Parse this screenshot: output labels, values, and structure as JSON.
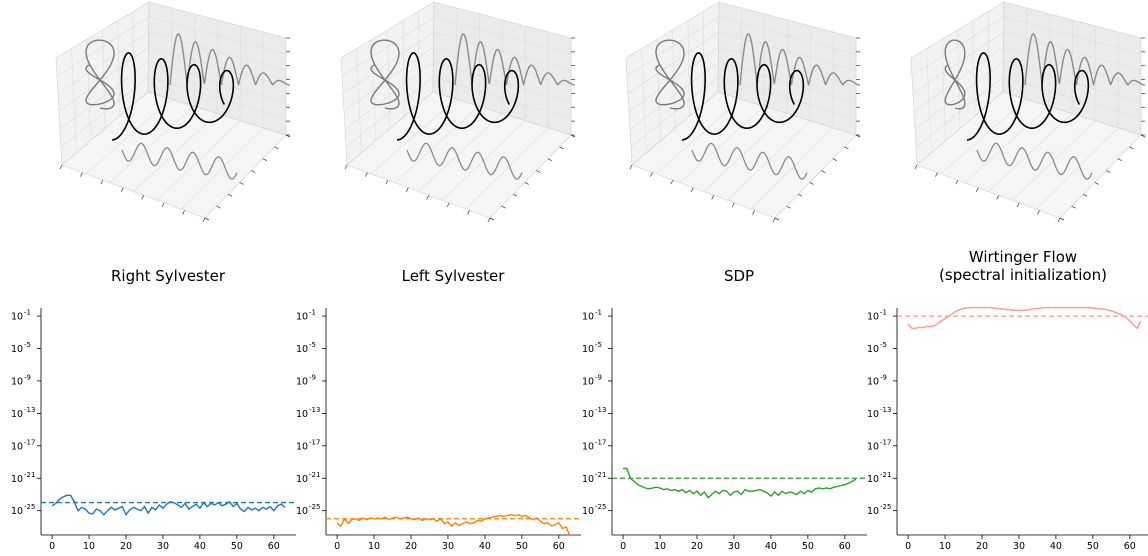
{
  "chart_data": [
    {
      "type": "line",
      "title": "Right Sylvester",
      "yscale": "log",
      "ylim": [
        1e-28,
        1.0
      ],
      "xlim": [
        -3,
        66
      ],
      "xticks": [
        0,
        10,
        20,
        30,
        40,
        50,
        60
      ],
      "ytick_labels": [
        "10",
        "10",
        "10",
        "10",
        "10",
        "10",
        "10"
      ],
      "ytick_exponents": [
        "-25",
        "-21",
        "-17",
        "-13",
        "-9",
        "-5",
        "-1"
      ],
      "ytick_values": [
        -25,
        -21,
        -17,
        -13,
        -9,
        -5,
        -1
      ],
      "color": "#1f77b4",
      "reference_line": 1e-24,
      "x": [
        0,
        1,
        2,
        3,
        4,
        5,
        6,
        7,
        8,
        9,
        10,
        11,
        12,
        13,
        14,
        15,
        16,
        17,
        18,
        19,
        20,
        21,
        22,
        23,
        24,
        25,
        26,
        27,
        28,
        29,
        30,
        31,
        32,
        33,
        34,
        35,
        36,
        37,
        38,
        39,
        40,
        41,
        42,
        43,
        44,
        45,
        46,
        47,
        48,
        49,
        50,
        51,
        52,
        53,
        54,
        55,
        56,
        57,
        58,
        59,
        60,
        61,
        62,
        63
      ],
      "log10_y": [
        -24.4,
        -24.1,
        -23.6,
        -23.3,
        -23.1,
        -23.1,
        -23.9,
        -25.0,
        -24.6,
        -24.8,
        -25.3,
        -25.4,
        -24.8,
        -25.0,
        -25.5,
        -25.0,
        -24.6,
        -24.9,
        -24.7,
        -24.5,
        -25.5,
        -24.9,
        -24.6,
        -24.8,
        -25.0,
        -24.5,
        -25.3,
        -24.6,
        -24.9,
        -24.3,
        -24.7,
        -24.2,
        -23.9,
        -24.0,
        -24.3,
        -24.6,
        -24.1,
        -24.8,
        -24.5,
        -24.2,
        -24.7,
        -24.0,
        -24.5,
        -24.1,
        -24.3,
        -24.0,
        -24.4,
        -24.2,
        -23.9,
        -24.5,
        -24.1,
        -24.8,
        -25.1,
        -24.6,
        -24.9,
        -24.7,
        -25.0,
        -24.6,
        -24.8,
        -24.5,
        -25.0,
        -24.4,
        -24.2,
        -24.6
      ]
    },
    {
      "type": "line",
      "title": "Left Sylvester",
      "yscale": "log",
      "ylim": [
        1e-28,
        1.0
      ],
      "xlim": [
        -3,
        66
      ],
      "xticks": [
        0,
        10,
        20,
        30,
        40,
        50,
        60
      ],
      "ytick_labels": [
        "10",
        "10",
        "10",
        "10",
        "10",
        "10",
        "10"
      ],
      "ytick_exponents": [
        "-25",
        "-21",
        "-17",
        "-13",
        "-9",
        "-5",
        "-1"
      ],
      "ytick_values": [
        -25,
        -21,
        -17,
        -13,
        -9,
        -5,
        -1
      ],
      "color": "#ff7f0e",
      "reference_line": 1e-26,
      "x": [
        0,
        1,
        2,
        3,
        4,
        5,
        6,
        7,
        8,
        9,
        10,
        11,
        12,
        13,
        14,
        15,
        16,
        17,
        18,
        19,
        20,
        21,
        22,
        23,
        24,
        25,
        26,
        27,
        28,
        29,
        30,
        31,
        32,
        33,
        34,
        35,
        36,
        37,
        38,
        39,
        40,
        41,
        42,
        43,
        44,
        45,
        46,
        47,
        48,
        49,
        50,
        51,
        52,
        53,
        54,
        55,
        56,
        57,
        58,
        59,
        60,
        61,
        62,
        63
      ],
      "log10_y": [
        -26.5,
        -26.9,
        -26.0,
        -26.6,
        -26.1,
        -26.0,
        -26.2,
        -25.9,
        -26.1,
        -25.9,
        -26.0,
        -25.9,
        -26.0,
        -25.8,
        -26.1,
        -25.9,
        -25.8,
        -26.0,
        -25.9,
        -25.8,
        -26.0,
        -26.1,
        -25.9,
        -26.2,
        -26.0,
        -26.1,
        -26.0,
        -26.3,
        -26.0,
        -26.6,
        -26.4,
        -26.9,
        -26.5,
        -26.8,
        -26.6,
        -26.4,
        -26.6,
        -26.5,
        -26.2,
        -26.3,
        -26.0,
        -25.9,
        -25.8,
        -25.7,
        -25.6,
        -25.7,
        -25.6,
        -25.5,
        -25.6,
        -25.5,
        -25.7,
        -25.6,
        -25.9,
        -26.1,
        -25.9,
        -26.3,
        -26.6,
        -26.5,
        -26.9,
        -26.7,
        -26.5,
        -27.2,
        -27.0,
        -28.1
      ]
    },
    {
      "type": "line",
      "title": "SDP",
      "yscale": "log",
      "ylim": [
        1e-28,
        1.0
      ],
      "xlim": [
        -3,
        66
      ],
      "xticks": [
        0,
        10,
        20,
        30,
        40,
        50,
        60
      ],
      "ytick_labels": [
        "10",
        "10",
        "10",
        "10",
        "10",
        "10",
        "10"
      ],
      "ytick_exponents": [
        "-25",
        "-21",
        "-17",
        "-13",
        "-9",
        "-5",
        "-1"
      ],
      "ytick_values": [
        -25,
        -21,
        -17,
        -13,
        -9,
        -5,
        -1
      ],
      "color": "#2ca02c",
      "reference_line": 1e-21,
      "x": [
        0,
        1,
        2,
        3,
        4,
        5,
        6,
        7,
        8,
        9,
        10,
        11,
        12,
        13,
        14,
        15,
        16,
        17,
        18,
        19,
        20,
        21,
        22,
        23,
        24,
        25,
        26,
        27,
        28,
        29,
        30,
        31,
        32,
        33,
        34,
        35,
        36,
        37,
        38,
        39,
        40,
        41,
        42,
        43,
        44,
        45,
        46,
        47,
        48,
        49,
        50,
        51,
        52,
        53,
        54,
        55,
        56,
        57,
        58,
        59,
        60,
        61,
        62,
        63
      ],
      "log10_y": [
        -19.8,
        -19.8,
        -21.0,
        -21.4,
        -21.8,
        -22.0,
        -22.2,
        -22.3,
        -22.2,
        -22.1,
        -22.2,
        -22.4,
        -22.3,
        -22.5,
        -22.4,
        -22.6,
        -22.4,
        -22.8,
        -22.5,
        -22.9,
        -22.6,
        -23.1,
        -22.7,
        -23.4,
        -23.0,
        -22.6,
        -22.9,
        -22.5,
        -22.6,
        -23.1,
        -22.7,
        -22.6,
        -23.0,
        -22.4,
        -22.6,
        -22.6,
        -22.5,
        -22.4,
        -22.6,
        -22.8,
        -23.2,
        -22.7,
        -23.1,
        -22.6,
        -22.9,
        -22.7,
        -22.8,
        -23.0,
        -22.6,
        -22.9,
        -22.5,
        -22.7,
        -22.3,
        -22.2,
        -22.3,
        -22.2,
        -22.3,
        -22.1,
        -22.0,
        -21.9,
        -21.8,
        -21.6,
        -21.4,
        -21.1
      ]
    },
    {
      "type": "line",
      "title": "Wirtinger Flow",
      "subtitle": "(spectral initialization)",
      "yscale": "log",
      "ylim": [
        1e-28,
        1.0
      ],
      "xlim": [
        -3,
        66
      ],
      "xticks": [
        0,
        10,
        20,
        30,
        40,
        50,
        60
      ],
      "ytick_labels": [
        "10",
        "10",
        "10",
        "10",
        "10",
        "10",
        "10"
      ],
      "ytick_exponents": [
        "-25",
        "-21",
        "-17",
        "-13",
        "-9",
        "-5",
        "-1"
      ],
      "ytick_values": [
        -25,
        -21,
        -17,
        -13,
        -9,
        -5,
        -1
      ],
      "color": "#ff9896",
      "reference_line": 0.1,
      "x": [
        0,
        1,
        2,
        3,
        4,
        5,
        6,
        7,
        8,
        9,
        10,
        11,
        12,
        13,
        14,
        15,
        16,
        17,
        18,
        19,
        20,
        21,
        22,
        23,
        24,
        25,
        26,
        27,
        28,
        29,
        30,
        31,
        32,
        33,
        34,
        35,
        36,
        37,
        38,
        39,
        40,
        41,
        42,
        43,
        44,
        45,
        46,
        47,
        48,
        49,
        50,
        51,
        52,
        53,
        54,
        55,
        56,
        57,
        58,
        59,
        60,
        61,
        62,
        63
      ],
      "log10_y": [
        -2.0,
        -2.5,
        -2.5,
        -2.4,
        -2.4,
        -2.3,
        -2.3,
        -2.2,
        -1.9,
        -1.6,
        -1.3,
        -1.0,
        -0.7,
        -0.4,
        -0.2,
        -0.05,
        0.0,
        0.05,
        0.05,
        0.05,
        0.05,
        0.05,
        0.05,
        0.0,
        -0.05,
        -0.1,
        -0.15,
        -0.2,
        -0.25,
        -0.3,
        -0.3,
        -0.3,
        -0.25,
        -0.2,
        -0.1,
        -0.05,
        0.0,
        0.05,
        0.05,
        0.05,
        0.05,
        0.05,
        0.05,
        0.05,
        0.05,
        0.05,
        0.05,
        0.05,
        0.05,
        0.05,
        0.0,
        -0.05,
        -0.1,
        -0.15,
        -0.25,
        -0.35,
        -0.5,
        -0.7,
        -0.9,
        -1.2,
        -1.6,
        -2.1,
        -2.5,
        -1.6
      ]
    }
  ]
}
